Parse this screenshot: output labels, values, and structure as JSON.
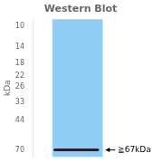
{
  "chart_data": {
    "type": "band",
    "title": "Western Blot",
    "ylabel": "kDa",
    "values": [
      70
    ],
    "color": "#222233",
    "ylim": [
      78,
      9
    ],
    "yticks": [
      70,
      44,
      33,
      26,
      22,
      18,
      14,
      10
    ],
    "log": "y",
    "grid": false,
    "annotations": [
      {
        "text": "≧67kDa",
        "y": 70
      }
    ]
  }
}
